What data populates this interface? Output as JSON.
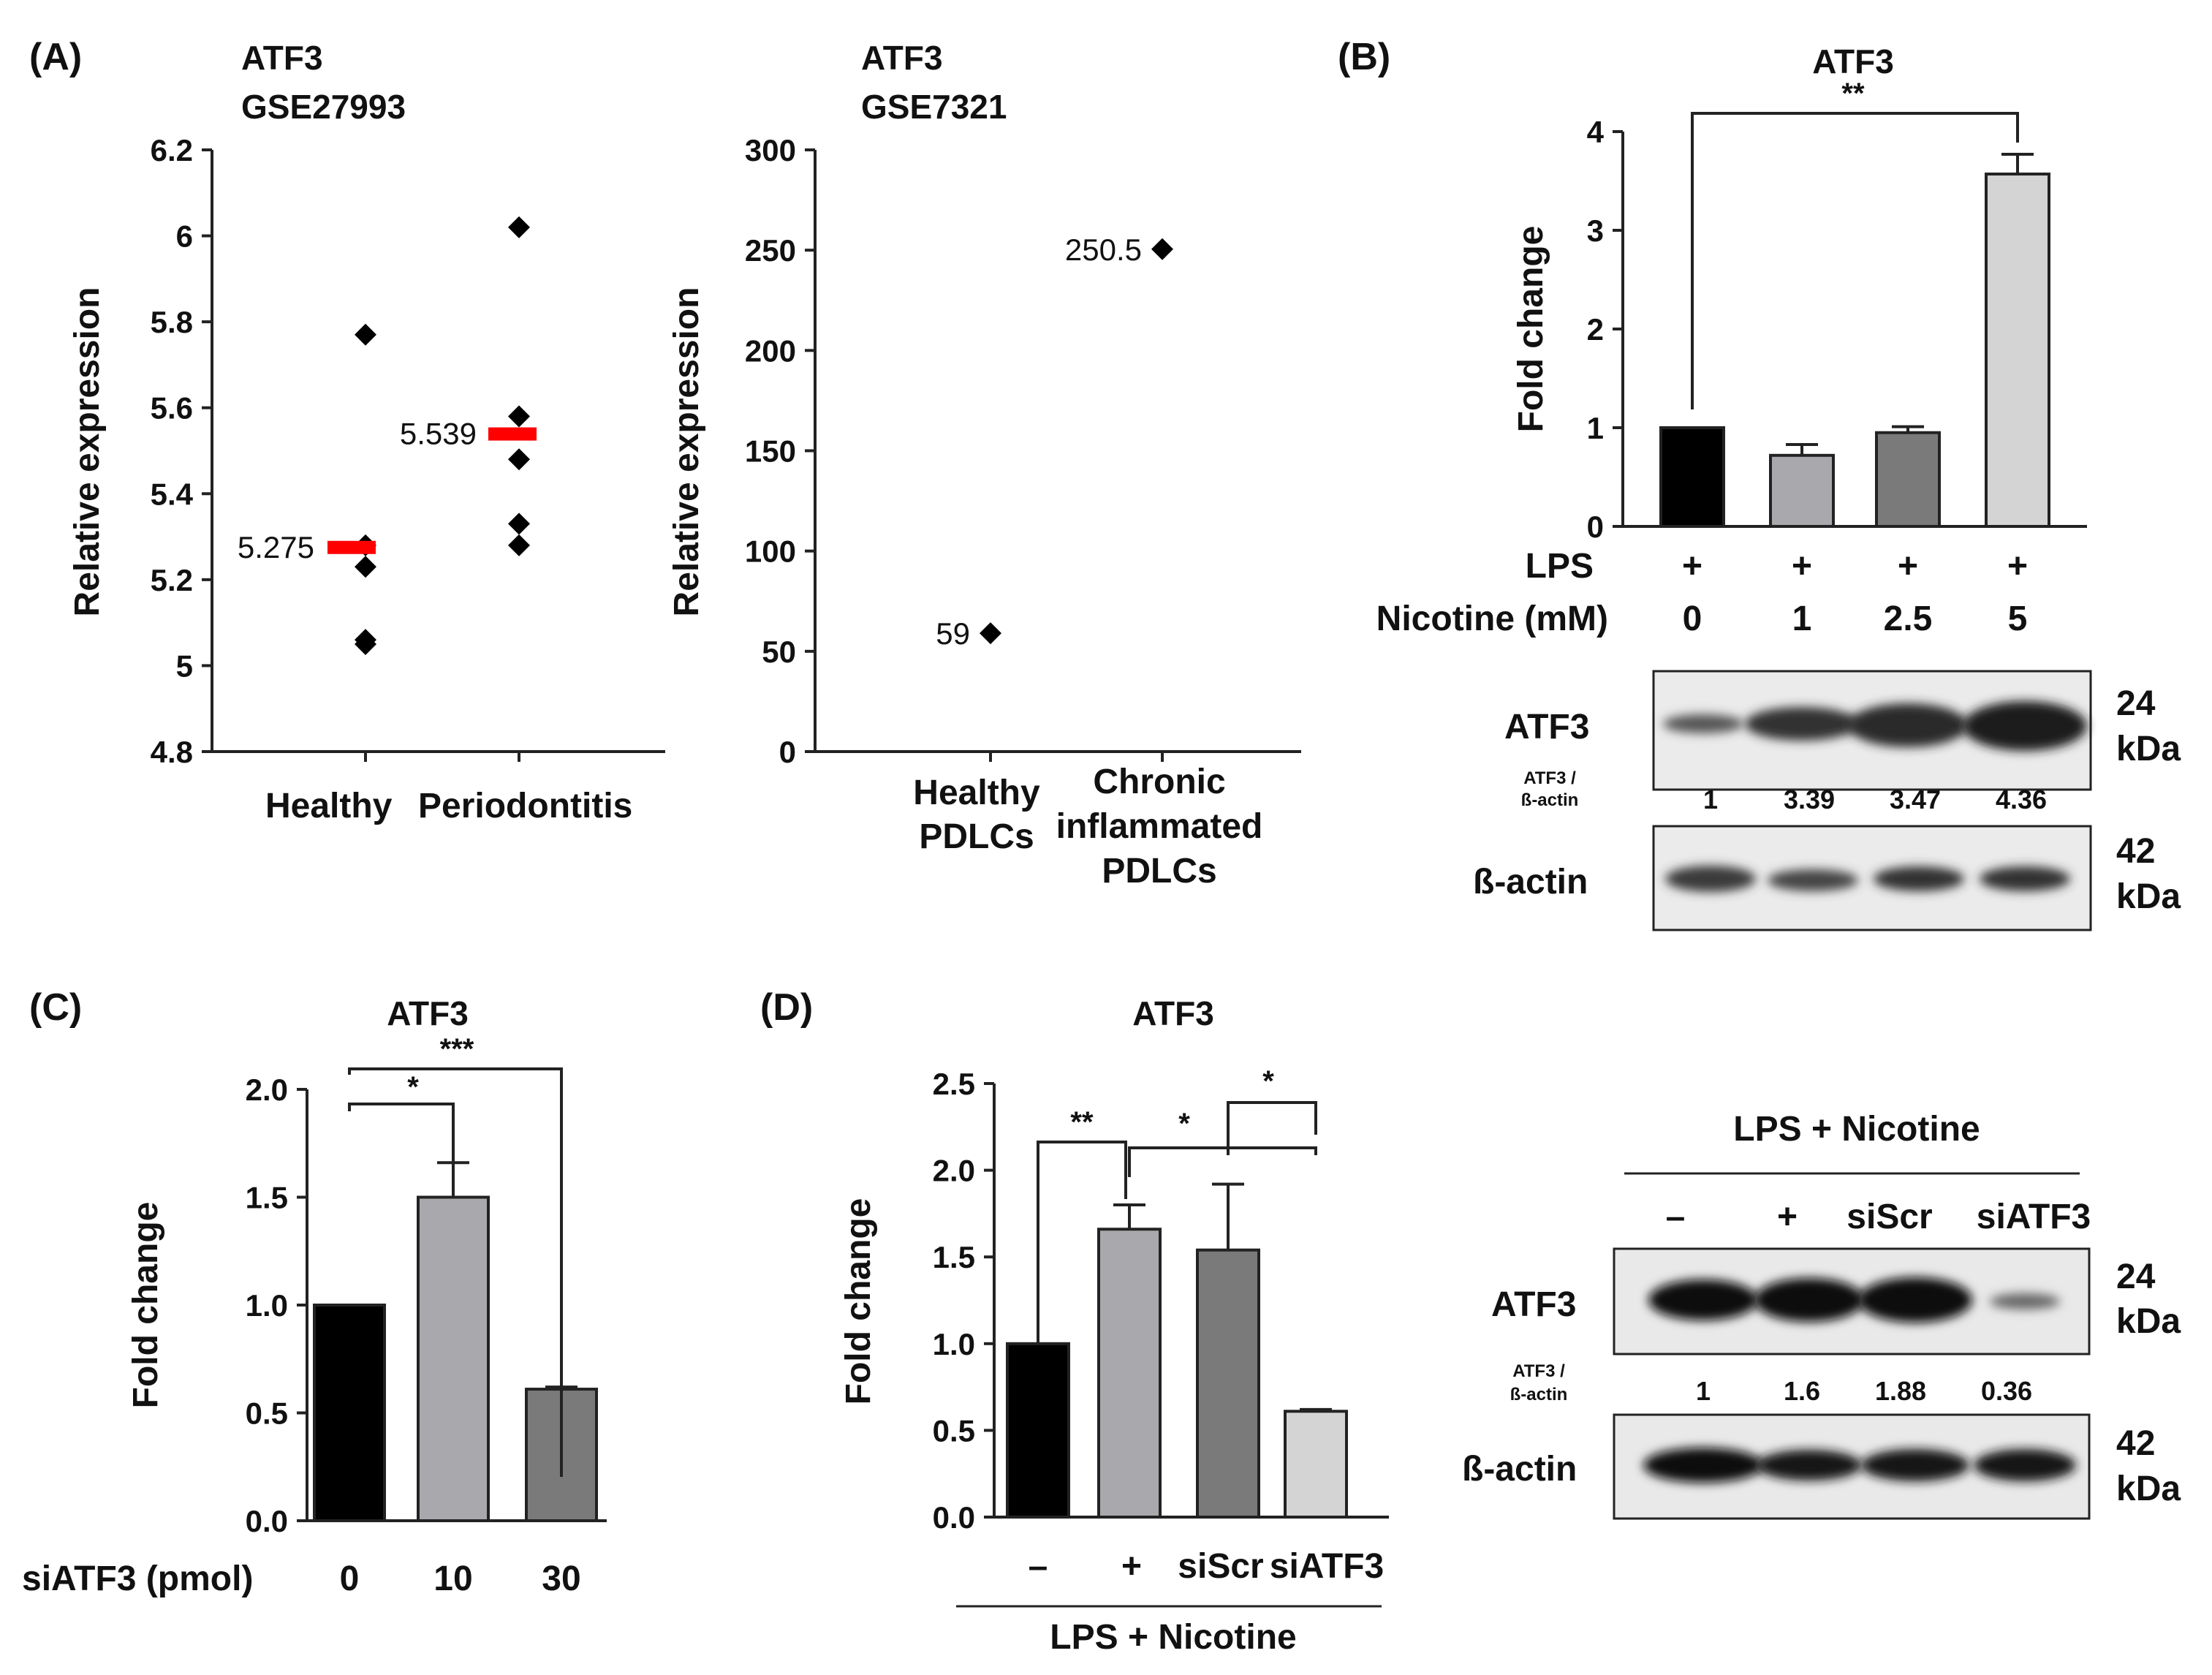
{
  "chart_data": [
    {
      "panel": "(A)",
      "type": "scatter",
      "title": [
        "ATF3",
        "GSE27993"
      ],
      "xlabel": "",
      "ylabel": "Relative expression",
      "categories": [
        "Healthy",
        "Periodontitis"
      ],
      "ylim": [
        4.8,
        6.2
      ],
      "yticks": [
        "6.2",
        "6",
        "5.8",
        "5.6",
        "5.4",
        "5.2",
        "5",
        "4.8"
      ],
      "points": [
        [
          5.77,
          5.28,
          5.23,
          5.06,
          5.05
        ],
        [
          6.02,
          5.58,
          5.48,
          5.33,
          5.28
        ]
      ],
      "means": [
        5.275,
        5.539
      ],
      "mean_labels": [
        "5.275",
        "5.539"
      ],
      "mean_color": "#ff0000"
    },
    {
      "panel": "",
      "type": "scatter",
      "title": [
        "ATF3",
        "GSE7321"
      ],
      "ylabel": "Relative expression",
      "categories": [
        [
          "Healthy",
          "PDLCs"
        ],
        [
          "Chronic",
          "inflammated",
          "PDLCs"
        ]
      ],
      "ylim": [
        0,
        300
      ],
      "yticks": [
        "300",
        "250",
        "200",
        "150",
        "100",
        "50",
        "0"
      ],
      "values": [
        59,
        250.5
      ],
      "value_labels": [
        "59",
        "250.5"
      ]
    },
    {
      "panel": "(B)",
      "type": "bar",
      "title": "ATF3",
      "ylabel": "Fold change",
      "ylim": [
        0,
        4
      ],
      "yticks": [
        "4",
        "3",
        "2",
        "1",
        "0"
      ],
      "categories": [
        "0",
        "1",
        "2.5",
        "5"
      ],
      "values": [
        1.0,
        0.72,
        0.95,
        3.57
      ],
      "errors": [
        0,
        0.11,
        0.06,
        0.2
      ],
      "colors": [
        "#000000",
        "#a9a9ad",
        "#7a7a7a",
        "#d4d4d4"
      ],
      "row_labels": [
        "LPS",
        "Nicotine (mM)"
      ],
      "lps_row": [
        "+",
        "+",
        "+",
        "+"
      ],
      "significance": [
        {
          "from": 0,
          "to": 3,
          "label": "**"
        }
      ],
      "blot": {
        "protein": "ATF3",
        "protein_kda": [
          "24",
          "kDa"
        ],
        "ratio_label": [
          "ATF3 /",
          "ß-actin"
        ],
        "ratios": [
          "1",
          "3.39",
          "3.47",
          "4.36"
        ],
        "control": "ß-actin",
        "control_kda": [
          "42",
          "kDa"
        ]
      }
    },
    {
      "panel": "(C)",
      "type": "bar",
      "title": "ATF3",
      "ylabel": "Fold change",
      "ylim": [
        0,
        2.0
      ],
      "yticks": [
        "2.0",
        "1.5",
        "1.0",
        "0.5",
        "0.0"
      ],
      "xlabel": "siATF3 (pmol)",
      "categories": [
        "0",
        "10",
        "30"
      ],
      "values": [
        1.0,
        1.5,
        0.61
      ],
      "errors": [
        0,
        0.16,
        0.01
      ],
      "colors": [
        "#000000",
        "#a9a9ad",
        "#7a7a7a"
      ],
      "significance": [
        {
          "from": 0,
          "to": 1,
          "label": "*"
        },
        {
          "from": 0,
          "to": 2,
          "label": "***"
        }
      ]
    },
    {
      "panel": "(D)",
      "type": "bar",
      "title": "ATF3",
      "ylabel": "Fold change",
      "ylim": [
        0,
        2.5
      ],
      "yticks": [
        "2.5",
        "2.0",
        "1.5",
        "1.0",
        "0.5",
        "0.0"
      ],
      "categories": [
        "–",
        "+",
        "siScr",
        "siATF3"
      ],
      "group_label": "LPS + Nicotine",
      "values": [
        1.0,
        1.66,
        1.54,
        0.61
      ],
      "errors": [
        0,
        0.14,
        0.38,
        0.01
      ],
      "colors": [
        "#000000",
        "#a9a9ad",
        "#7a7a7a",
        "#d4d4d4"
      ],
      "significance": [
        {
          "from": 0,
          "to": 1,
          "label": "**"
        },
        {
          "from": 1,
          "to": 3,
          "label": "*"
        },
        {
          "from": 2,
          "to": 3,
          "label": "*"
        }
      ],
      "blot": {
        "header": "LPS + Nicotine",
        "lanes": [
          "–",
          "+",
          "siScr",
          "siATF3"
        ],
        "protein": "ATF3",
        "protein_kda": [
          "24",
          "kDa"
        ],
        "ratio_label": [
          "ATF3 /",
          "ß-actin"
        ],
        "ratios": [
          "1",
          "1.6",
          "1.88",
          "0.36"
        ],
        "control": "ß-actin",
        "control_kda": [
          "42",
          "kDa"
        ]
      }
    }
  ]
}
